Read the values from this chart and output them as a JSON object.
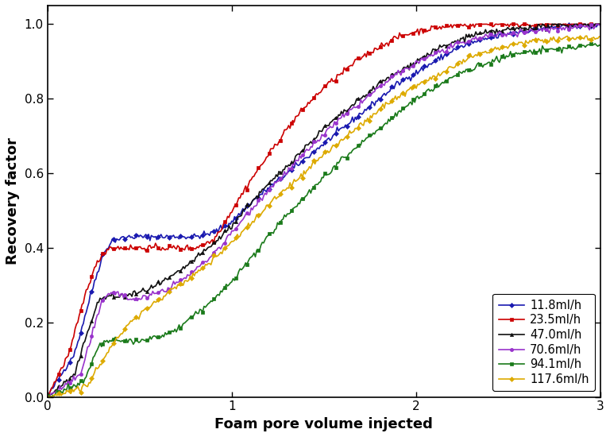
{
  "title": "",
  "xlabel": "Foam pore volume injected",
  "ylabel": "Recovery factor",
  "xlim": [
    0,
    3
  ],
  "ylim": [
    0,
    1.05
  ],
  "xticks": [
    0,
    1,
    2,
    3
  ],
  "yticks": [
    0.0,
    0.2,
    0.4,
    0.6,
    0.8,
    1.0
  ],
  "series": [
    {
      "label": "11.8ml/h",
      "color": "#1a1ab0",
      "marker": "D",
      "markersize": 3,
      "linewidth": 1.2
    },
    {
      "label": "23.5ml/h",
      "color": "#cc0000",
      "marker": "s",
      "markersize": 3,
      "linewidth": 1.2
    },
    {
      "label": "47.0ml/h",
      "color": "#111111",
      "marker": "^",
      "markersize": 3,
      "linewidth": 1.2
    },
    {
      "label": "70.6ml/h",
      "color": "#9933cc",
      "marker": "o",
      "markersize": 3,
      "linewidth": 1.2
    },
    {
      "label": "94.1ml/h",
      "color": "#1a7a1a",
      "marker": "s",
      "markersize": 3,
      "linewidth": 1.2
    },
    {
      "label": "117.6ml/h",
      "color": "#ddaa00",
      "marker": "D",
      "markersize": 3,
      "linewidth": 1.2
    }
  ],
  "legend_loc": "lower right",
  "background_color": "#ffffff"
}
